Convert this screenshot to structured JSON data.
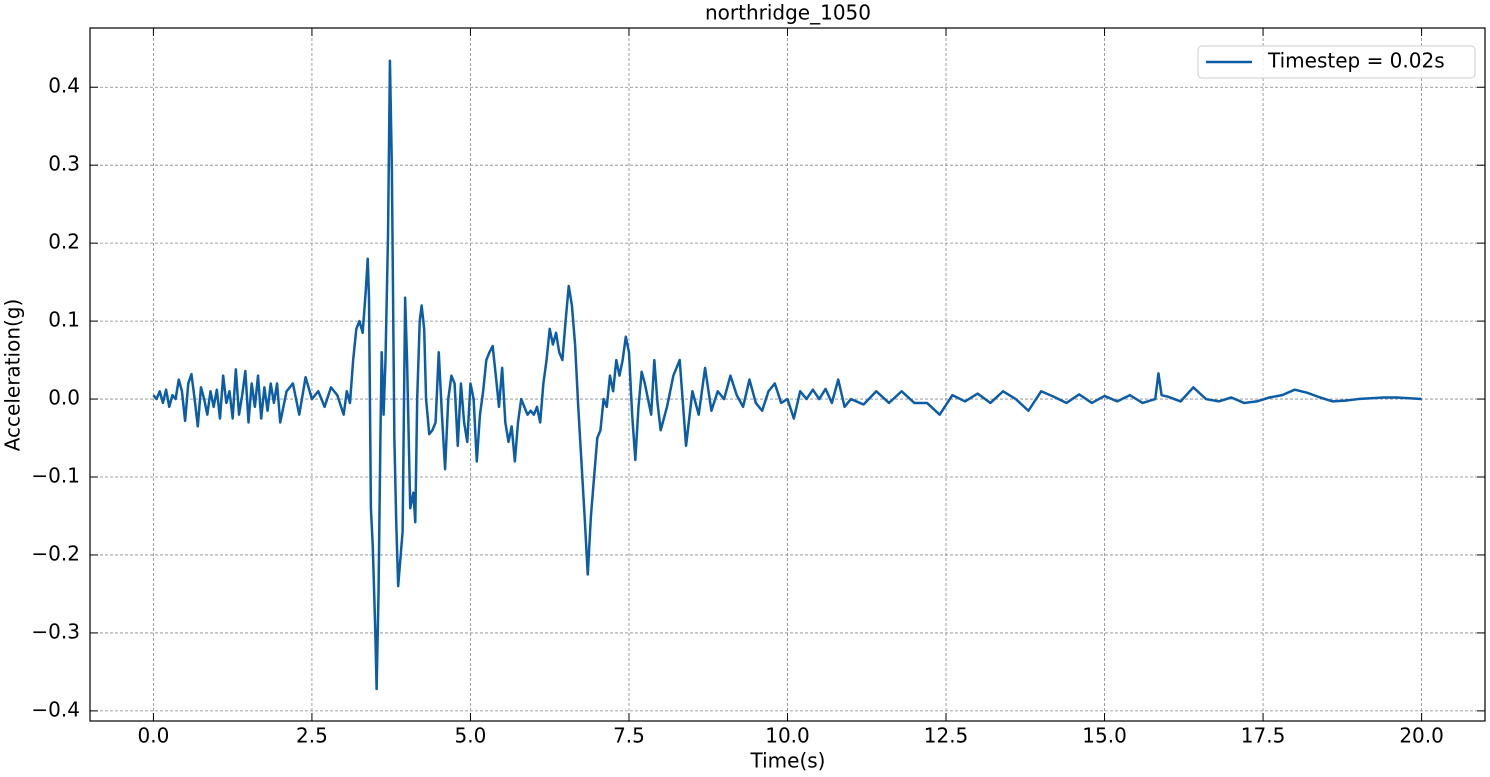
{
  "chart_data": {
    "type": "line",
    "title": "northridge_1050",
    "xlabel": "Time(s)",
    "ylabel": "Acceleration(g)",
    "xlim": [
      -1.0,
      21.0
    ],
    "ylim": [
      -0.413,
      0.476
    ],
    "xticks": [
      {
        "value": 0,
        "label": "0.0"
      },
      2.5,
      {
        "value": 5,
        "label": "5.0"
      },
      7.5,
      {
        "value": 10,
        "label": "10.0"
      },
      12.5,
      {
        "value": 15,
        "label": "15.0"
      },
      17.5,
      {
        "value": 20,
        "label": "20.0"
      }
    ],
    "yticks": [
      {
        "value": -0.4,
        "label": "−0.4"
      },
      {
        "value": -0.3,
        "label": "−0.3"
      },
      {
        "value": -0.2,
        "label": "−0.2"
      },
      {
        "value": -0.1,
        "label": "−0.1"
      },
      {
        "value": 0,
        "label": "0.0"
      },
      0.1,
      0.2,
      0.3,
      0.4
    ],
    "grid": true,
    "legend": "upper right",
    "x": [
      0,
      0.05,
      0.1,
      0.15,
      0.2,
      0.25,
      0.3,
      0.35,
      0.4,
      0.45,
      0.5,
      0.55,
      0.6,
      0.65,
      0.7,
      0.75,
      0.8,
      0.85,
      0.9,
      0.95,
      1.0,
      1.05,
      1.1,
      1.15,
      1.2,
      1.25,
      1.3,
      1.35,
      1.4,
      1.45,
      1.5,
      1.55,
      1.6,
      1.65,
      1.7,
      1.75,
      1.8,
      1.85,
      1.9,
      1.95,
      2.0,
      2.05,
      2.1,
      2.2,
      2.3,
      2.4,
      2.5,
      2.6,
      2.7,
      2.8,
      2.9,
      3.0,
      3.05,
      3.1,
      3.15,
      3.2,
      3.25,
      3.3,
      3.35,
      3.38,
      3.4,
      3.43,
      3.46,
      3.5,
      3.52,
      3.55,
      3.58,
      3.6,
      3.63,
      3.66,
      3.7,
      3.73,
      3.76,
      3.8,
      3.83,
      3.86,
      3.9,
      3.93,
      3.97,
      4.0,
      4.05,
      4.1,
      4.13,
      4.16,
      4.2,
      4.23,
      4.27,
      4.3,
      4.35,
      4.4,
      4.45,
      4.5,
      4.55,
      4.6,
      4.65,
      4.7,
      4.75,
      4.8,
      4.85,
      4.9,
      4.95,
      5.0,
      5.05,
      5.1,
      5.15,
      5.2,
      5.25,
      5.3,
      5.35,
      5.4,
      5.45,
      5.5,
      5.55,
      5.6,
      5.65,
      5.7,
      5.75,
      5.8,
      5.85,
      5.9,
      5.95,
      6.0,
      6.05,
      6.1,
      6.15,
      6.2,
      6.25,
      6.3,
      6.35,
      6.4,
      6.45,
      6.5,
      6.55,
      6.6,
      6.65,
      6.7,
      6.75,
      6.8,
      6.85,
      6.9,
      6.95,
      7.0,
      7.05,
      7.1,
      7.15,
      7.2,
      7.25,
      7.3,
      7.35,
      7.4,
      7.45,
      7.5,
      7.55,
      7.6,
      7.65,
      7.7,
      7.75,
      7.8,
      7.85,
      7.9,
      7.95,
      8.0,
      8.1,
      8.2,
      8.3,
      8.4,
      8.5,
      8.6,
      8.7,
      8.8,
      8.9,
      9.0,
      9.1,
      9.2,
      9.3,
      9.4,
      9.5,
      9.6,
      9.7,
      9.8,
      9.9,
      10.0,
      10.1,
      10.2,
      10.3,
      10.4,
      10.5,
      10.6,
      10.7,
      10.8,
      10.9,
      11.0,
      11.2,
      11.4,
      11.6,
      11.8,
      12.0,
      12.2,
      12.4,
      12.6,
      12.8,
      13.0,
      13.2,
      13.4,
      13.6,
      13.8,
      14.0,
      14.2,
      14.4,
      14.6,
      14.8,
      15.0,
      15.2,
      15.4,
      15.6,
      15.8,
      15.85,
      15.9,
      16.0,
      16.2,
      16.4,
      16.6,
      16.8,
      17.0,
      17.2,
      17.4,
      17.6,
      17.8,
      18.0,
      18.2,
      18.4,
      18.6,
      18.8,
      19.0,
      19.2,
      19.4,
      19.6,
      19.8,
      20.0
    ],
    "series": [
      {
        "name": "Timestep = 0.02s",
        "color": "#0c5da5",
        "values": [
          0.005,
          0,
          0.01,
          -0.005,
          0.012,
          -0.01,
          0.005,
          0,
          0.025,
          0.01,
          -0.028,
          0.02,
          0.032,
          0,
          -0.035,
          0.015,
          0,
          -0.02,
          0.01,
          -0.01,
          0.012,
          -0.025,
          0.03,
          -0.005,
          0.01,
          -0.025,
          0.038,
          -0.02,
          0.005,
          0.036,
          -0.03,
          0.02,
          -0.01,
          0.03,
          -0.025,
          0.015,
          -0.015,
          0.02,
          -0.005,
          0.02,
          -0.03,
          -0.01,
          0.01,
          0.02,
          -0.02,
          0.028,
          0,
          0.01,
          -0.01,
          0.015,
          0.005,
          -0.02,
          0.01,
          -0.005,
          0.05,
          0.09,
          0.1,
          0.085,
          0.14,
          0.18,
          0.13,
          -0.14,
          -0.19,
          -0.3,
          -0.372,
          -0.25,
          -0.05,
          0.06,
          -0.02,
          0.05,
          0.21,
          0.434,
          0.3,
          -0.05,
          -0.16,
          -0.24,
          -0.2,
          -0.17,
          0.13,
          0.05,
          -0.14,
          -0.12,
          -0.158,
          0,
          0.1,
          0.12,
          0.09,
          0,
          -0.045,
          -0.04,
          -0.03,
          0.06,
          -0.02,
          -0.09,
          0,
          0.03,
          0.02,
          -0.06,
          0.02,
          -0.03,
          -0.055,
          0.02,
          0,
          -0.08,
          -0.02,
          0.01,
          0.05,
          0.06,
          0.068,
          0.03,
          -0.01,
          0.04,
          -0.03,
          -0.055,
          -0.035,
          -0.08,
          -0.03,
          0,
          -0.01,
          -0.02,
          -0.015,
          -0.02,
          -0.01,
          -0.03,
          0.02,
          0.05,
          0.09,
          0.07,
          0.085,
          0.06,
          0.05,
          0.1,
          0.145,
          0.12,
          0.07,
          -0.01,
          -0.08,
          -0.15,
          -0.225,
          -0.15,
          -0.1,
          -0.05,
          -0.04,
          0,
          -0.01,
          0.03,
          0.01,
          0.05,
          0.03,
          0.05,
          0.08,
          0.06,
          -0.02,
          -0.078,
          -0.01,
          0.035,
          0.02,
          0,
          -0.02,
          0.05,
          -0.005,
          -0.04,
          -0.01,
          0.03,
          0.05,
          -0.06,
          0.01,
          -0.02,
          0.04,
          -0.015,
          0.01,
          0,
          0.03,
          0.005,
          -0.01,
          0.025,
          -0.005,
          -0.015,
          0.01,
          0.02,
          -0.005,
          0,
          -0.025,
          0.01,
          0,
          0.012,
          0,
          0.013,
          -0.005,
          0.025,
          -0.01,
          0,
          -0.007,
          0.01,
          -0.005,
          0.01,
          -0.005,
          -0.005,
          -0.02,
          0.005,
          -0.003,
          0.007,
          -0.005,
          0.01,
          0,
          -0.015,
          0.01,
          0.003,
          -0.005,
          0.006,
          -0.005,
          0.004,
          -0.003,
          0.005,
          -0.005,
          0,
          0.033,
          0.005,
          0.003,
          -0.003,
          0.015,
          0,
          -0.003,
          0.002,
          -0.005,
          -0.003,
          0.002,
          0.005,
          0.012,
          0.008,
          0.002,
          -0.003,
          -0.002,
          0,
          0.001,
          0.002,
          0.002,
          0.001,
          0
        ]
      }
    ]
  }
}
